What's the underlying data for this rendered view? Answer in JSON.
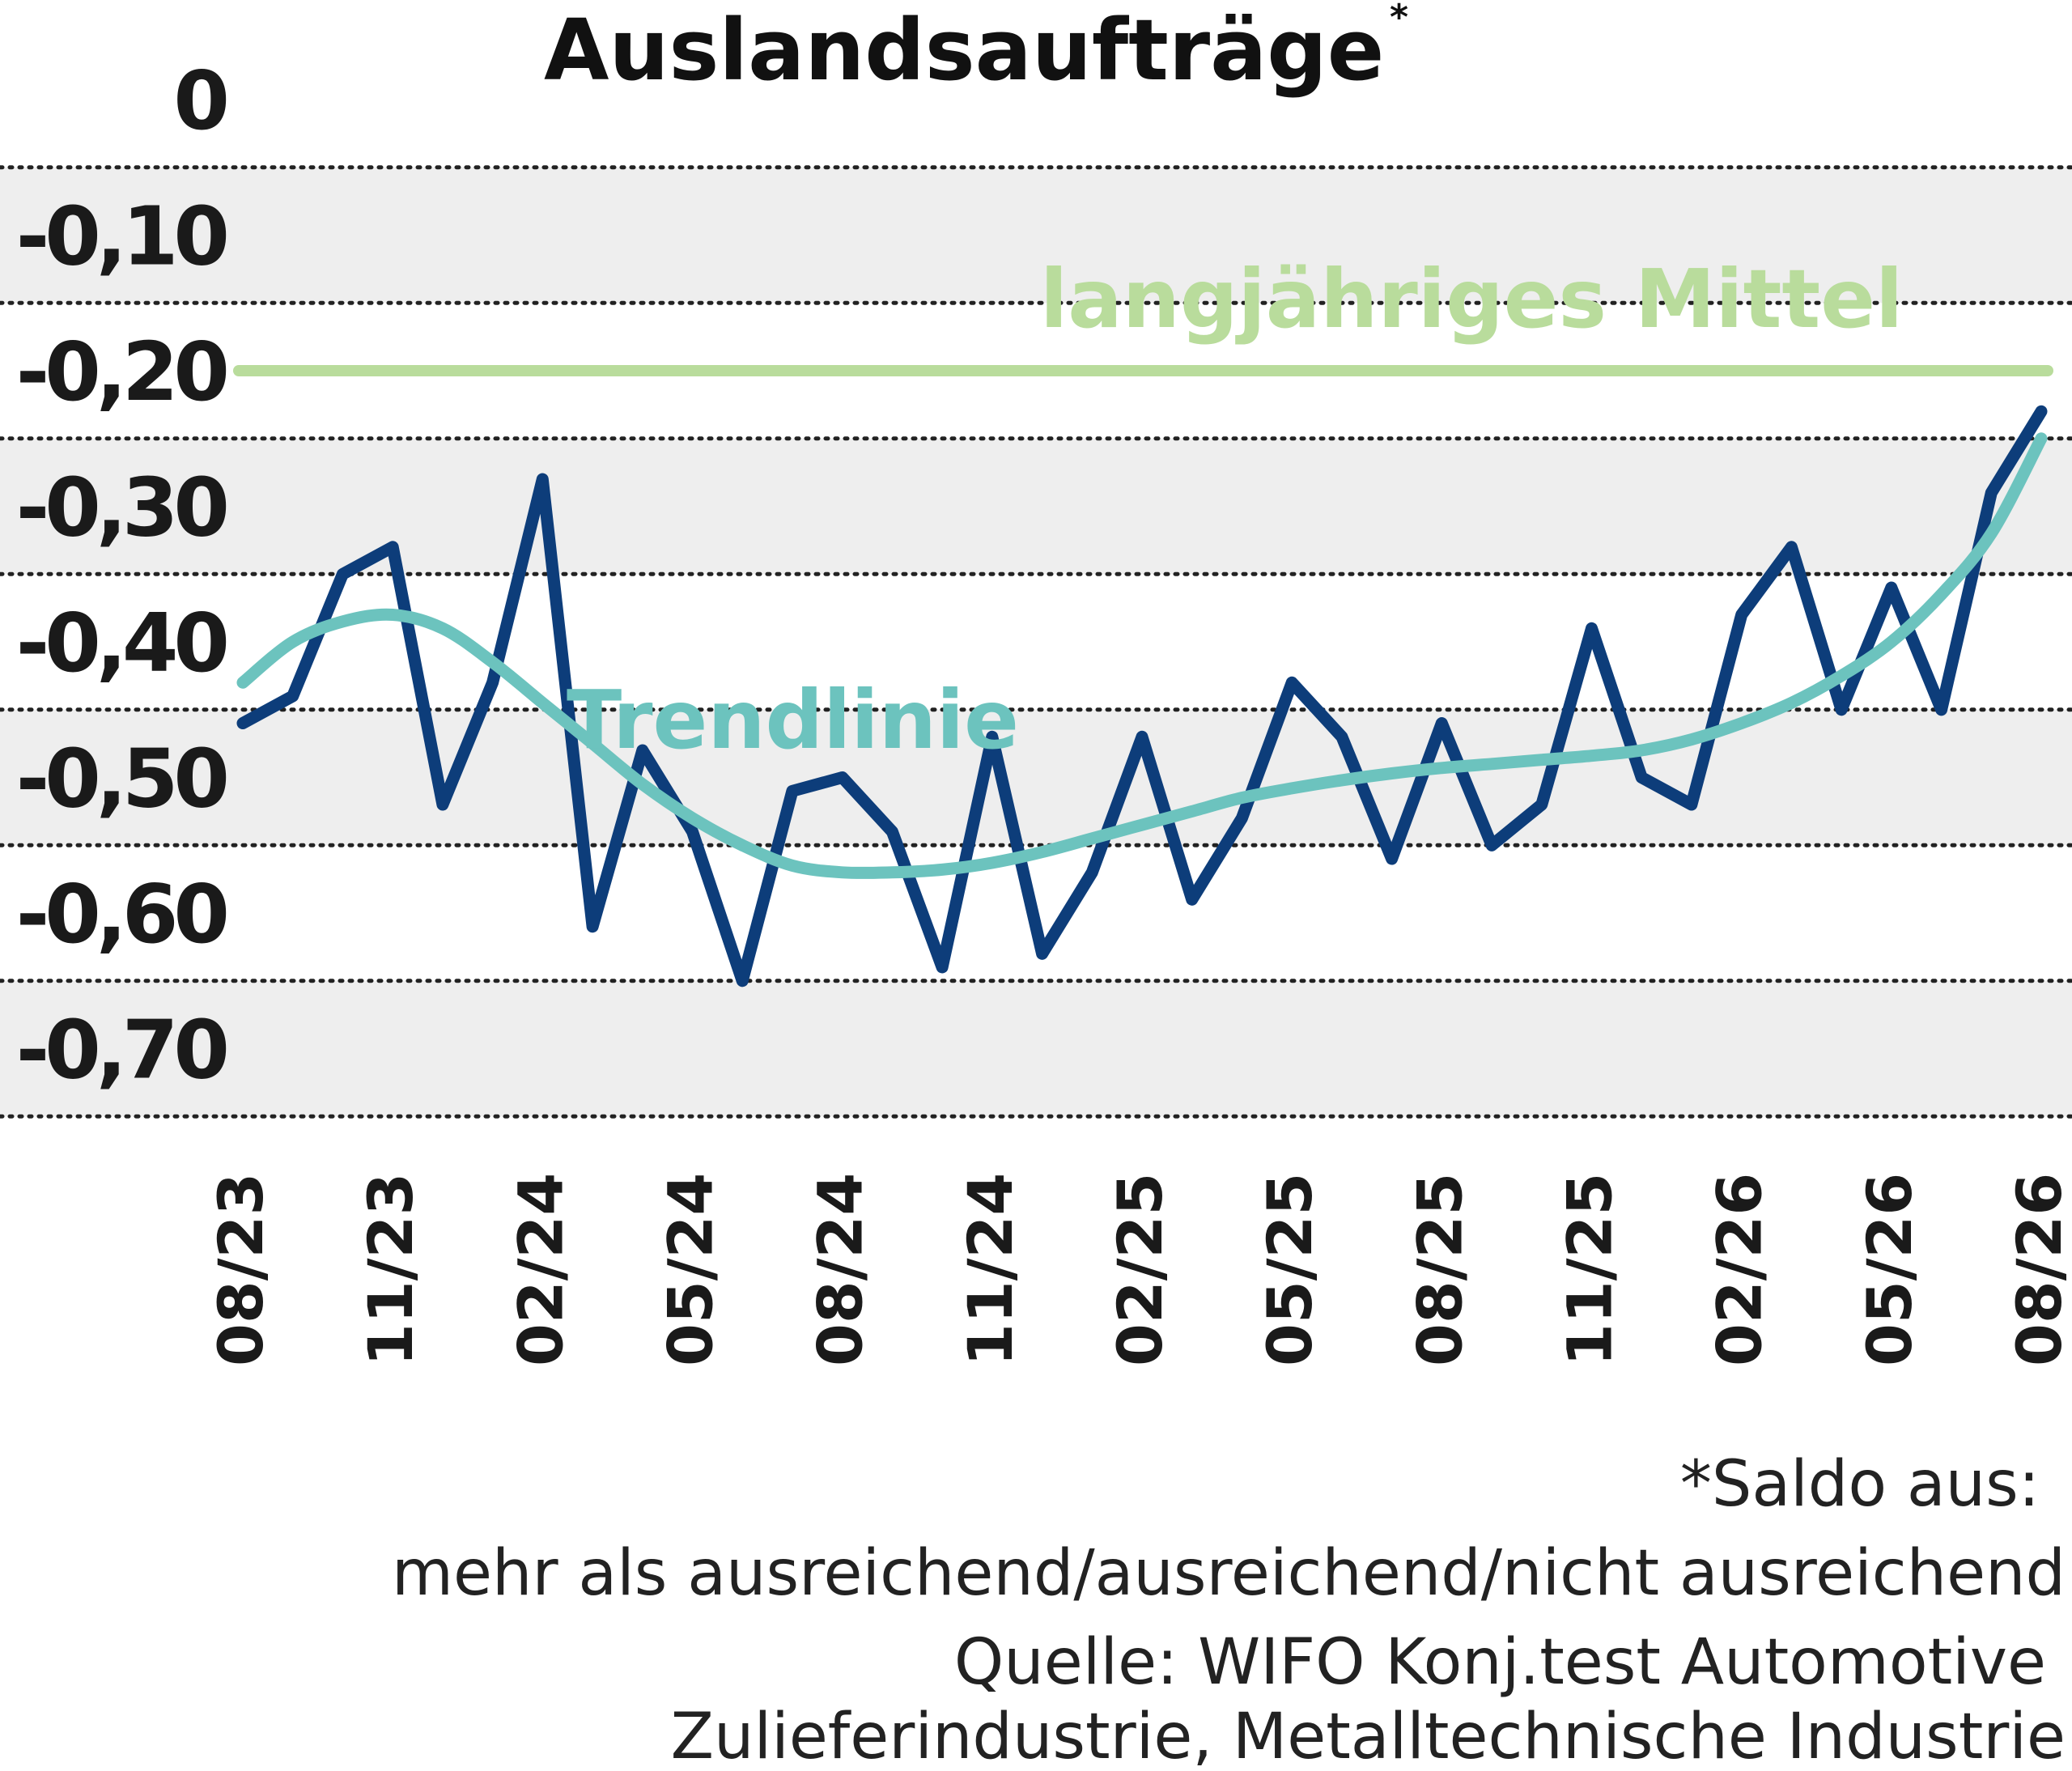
{
  "chart_data": {
    "type": "line",
    "title": "Auslandsaufträge",
    "title_marker": "*",
    "y_ticks": [
      "0",
      "-0,10",
      "-0,20",
      "-0,30",
      "-0,40",
      "-0,50",
      "-0,60",
      "-0,70"
    ],
    "ylim": [
      -0.75,
      0
    ],
    "x_ticks": [
      "08/23",
      "11/23",
      "02/24",
      "05/24",
      "08/24",
      "11/24",
      "02/25",
      "05/25",
      "08/25",
      "11/25",
      "02/26",
      "05/26",
      "08/26"
    ],
    "x_months": [
      "08/23",
      "09/23",
      "10/23",
      "11/23",
      "12/23",
      "01/24",
      "02/24",
      "03/24",
      "04/24",
      "05/24",
      "06/24",
      "07/24",
      "08/24",
      "09/24",
      "10/24",
      "11/24",
      "12/24",
      "01/25",
      "02/25",
      "03/25",
      "04/25",
      "05/25",
      "06/25",
      "07/25",
      "08/25",
      "09/25",
      "10/25",
      "11/25",
      "12/25",
      "01/26",
      "02/26",
      "03/26",
      "04/26",
      "05/26",
      "06/26",
      "07/26",
      "08/26"
    ],
    "series": [
      {
        "values": [
          -0.46,
          -0.44,
          -0.35,
          -0.33,
          -0.52,
          -0.43,
          -0.28,
          -0.61,
          -0.48,
          -0.54,
          -0.65,
          -0.51,
          -0.5,
          -0.54,
          -0.64,
          -0.47,
          -0.63,
          -0.57,
          -0.47,
          -0.59,
          -0.53,
          -0.43,
          -0.47,
          -0.56,
          -0.46,
          -0.55,
          -0.52,
          -0.39,
          -0.5,
          -0.52,
          -0.38,
          -0.33,
          -0.45,
          -0.36,
          -0.45,
          -0.29,
          -0.23
        ],
        "color": "#0d3d7a"
      },
      {
        "name": "Trendlinie",
        "values": [
          -0.43,
          -0.4,
          -0.385,
          -0.38,
          -0.39,
          -0.415,
          -0.445,
          -0.475,
          -0.505,
          -0.53,
          -0.55,
          -0.565,
          -0.57,
          -0.57,
          -0.568,
          -0.563,
          -0.555,
          -0.545,
          -0.535,
          -0.525,
          -0.515,
          -0.508,
          -0.502,
          -0.497,
          -0.493,
          -0.49,
          -0.487,
          -0.484,
          -0.48,
          -0.472,
          -0.46,
          -0.445,
          -0.425,
          -0.4,
          -0.365,
          -0.32,
          -0.25
        ],
        "color": "#6cc3be"
      },
      {
        "name": "langjähriges Mittel",
        "values": [
          -0.2,
          -0.2
        ],
        "color": "#b9dc9c",
        "span": "full"
      }
    ],
    "grid": "dotted horizontal",
    "band_fill": "#eeeeee",
    "notes": [
      "*Saldo aus:",
      "mehr als ausreichend/ausreichend/nicht ausreichend",
      "Quelle: WIFO Konj.test Automotive",
      "Zulieferindustrie, Metalltechnische Industrie"
    ]
  }
}
